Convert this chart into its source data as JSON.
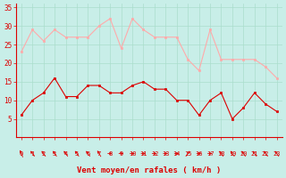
{
  "hours": [
    0,
    1,
    2,
    3,
    4,
    5,
    6,
    7,
    8,
    9,
    10,
    11,
    12,
    13,
    14,
    15,
    16,
    17,
    18,
    19,
    20,
    21,
    22,
    23
  ],
  "wind_avg": [
    6,
    10,
    12,
    16,
    11,
    11,
    14,
    14,
    12,
    12,
    14,
    15,
    13,
    13,
    10,
    10,
    6,
    10,
    12,
    5,
    8,
    12,
    9,
    7
  ],
  "wind_gust": [
    23,
    29,
    26,
    29,
    27,
    27,
    27,
    30,
    32,
    24,
    32,
    29,
    27,
    27,
    27,
    21,
    18,
    29,
    21,
    21,
    21,
    21,
    19,
    16
  ],
  "avg_color": "#dd0000",
  "gust_color": "#ffaaaa",
  "bg_color": "#c8eee8",
  "grid_color": "#aaddcc",
  "xlabel": "Vent moyen/en rafales ( km/h )",
  "xlabel_color": "#dd0000",
  "tick_color": "#dd0000",
  "ylim": [
    0,
    36
  ],
  "yticks": [
    5,
    10,
    15,
    20,
    25,
    30,
    35
  ],
  "wind_dir_angles": [
    210,
    225,
    225,
    225,
    225,
    225,
    225,
    220,
    90,
    90,
    90,
    90,
    90,
    90,
    90,
    135,
    90,
    90,
    225,
    225,
    225,
    225,
    225,
    225
  ]
}
